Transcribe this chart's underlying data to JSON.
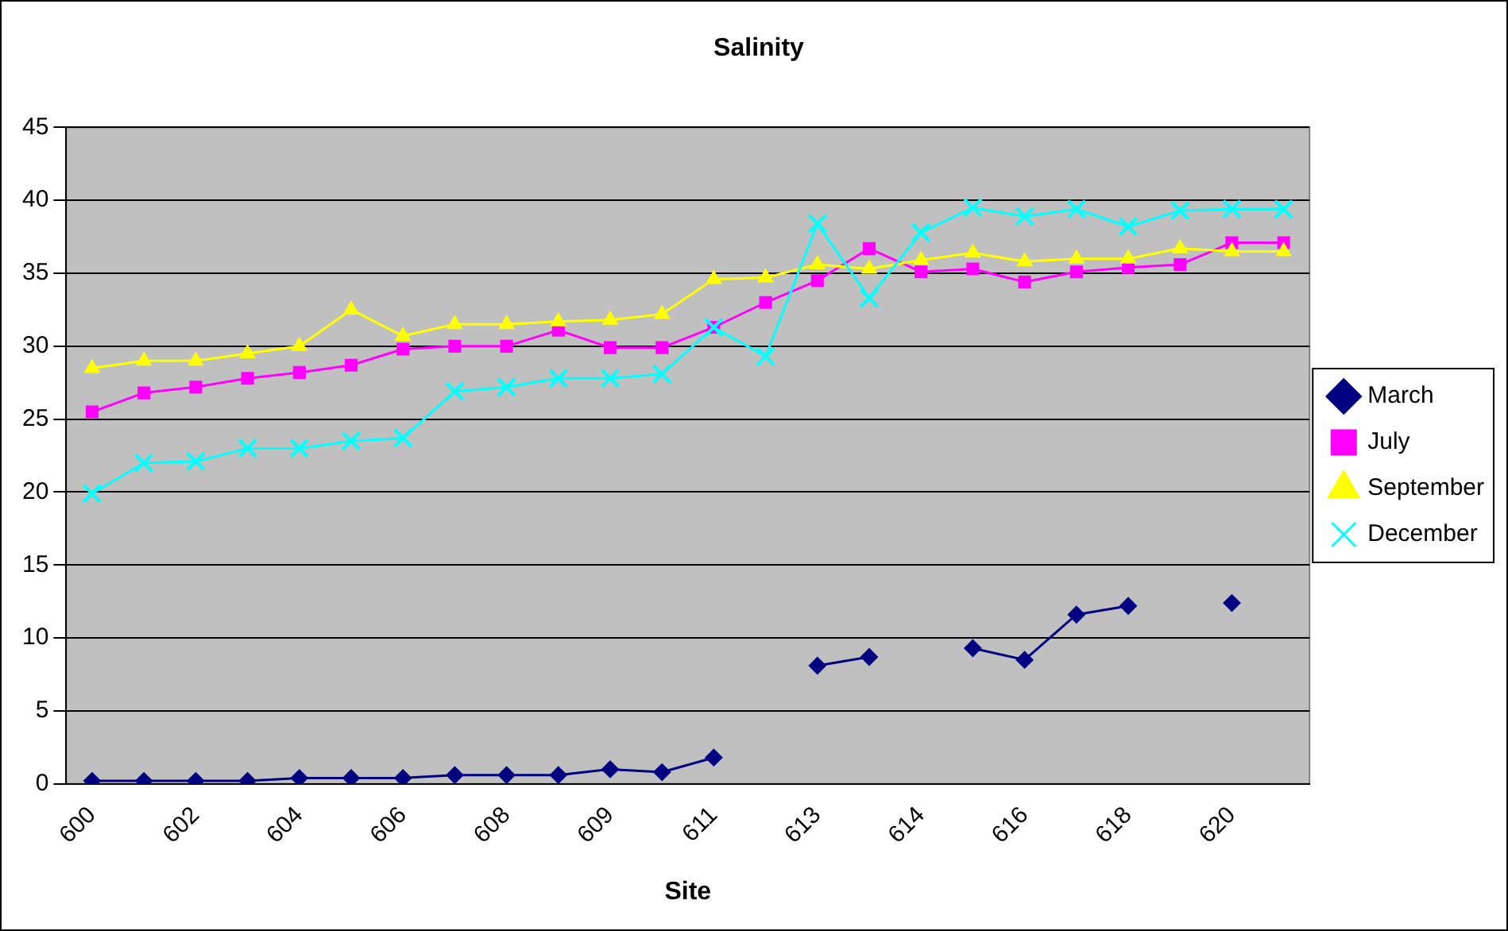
{
  "chart_data": {
    "type": "line",
    "title": "Salinity",
    "xlabel": "Site",
    "categories": [
      "600",
      null,
      "602",
      null,
      "604",
      null,
      "606",
      null,
      "608",
      null,
      "609",
      null,
      "611",
      null,
      "613",
      null,
      "614",
      null,
      "616",
      null,
      "618",
      null,
      "620",
      null
    ],
    "ylim": [
      0,
      45
    ],
    "yticks": [
      0,
      5,
      10,
      15,
      20,
      25,
      30,
      35,
      40,
      45
    ],
    "grid": "y",
    "legend": "right",
    "series": [
      {
        "name": "March",
        "color": "#000080",
        "marker": "diamond",
        "values": [
          0.2,
          0.2,
          0.2,
          0.2,
          0.4,
          0.4,
          0.4,
          0.6,
          0.6,
          0.6,
          1.0,
          0.8,
          1.8,
          null,
          8.1,
          8.7,
          null,
          9.3,
          8.5,
          11.6,
          12.2,
          null,
          12.4,
          null
        ]
      },
      {
        "name": "July",
        "color": "#ff00ff",
        "marker": "square",
        "values": [
          25.5,
          26.8,
          27.2,
          27.8,
          28.2,
          28.7,
          29.8,
          30.0,
          30.0,
          31.1,
          29.9,
          29.9,
          31.3,
          33.0,
          34.5,
          36.7,
          35.1,
          35.3,
          34.4,
          35.1,
          35.4,
          35.6,
          37.1,
          37.1
        ]
      },
      {
        "name": "September",
        "color": "#ffff00",
        "marker": "triangle",
        "values": [
          28.5,
          29.0,
          29.0,
          29.5,
          30.0,
          32.5,
          30.7,
          31.5,
          31.5,
          31.7,
          31.8,
          32.2,
          34.6,
          34.7,
          35.6,
          35.3,
          35.9,
          36.4,
          35.8,
          36.0,
          36.0,
          36.7,
          36.5,
          36.5
        ]
      },
      {
        "name": "December",
        "color": "#00ffff",
        "marker": "cross",
        "values": [
          19.9,
          22.0,
          22.1,
          23.0,
          23.0,
          23.5,
          23.7,
          26.9,
          27.2,
          27.8,
          27.8,
          28.1,
          31.3,
          29.3,
          38.4,
          33.3,
          37.8,
          39.5,
          38.9,
          39.4,
          38.2,
          39.3,
          39.4,
          39.4
        ]
      }
    ]
  }
}
